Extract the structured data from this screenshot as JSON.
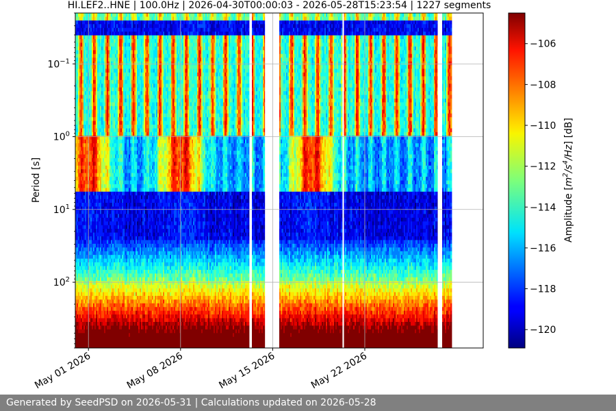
{
  "chart_data": {
    "type": "heatmap",
    "title": "HI.LEF2..HNE | 100.0Hz | 2026-04-30T00:00:03 - 2026-05-28T15:23:54 | 1227 segments",
    "xlabel": "",
    "ylabel": "Period [s]",
    "colorbar_label": "Amplitude [m²/s⁴/Hz] [dB]",
    "colorbar_label_parts": [
      "Amplitude [",
      "m",
      "2",
      "/s",
      "4",
      "/Hz",
      "] [dB]"
    ],
    "colormap": "jet",
    "zlim": [
      -120.9,
      -104.5
    ],
    "colorbar_ticks": [
      -106,
      -108,
      -110,
      -112,
      -114,
      -116,
      -118,
      -120
    ],
    "colorbar_tick_labels": [
      "−106",
      "−108",
      "−110",
      "−112",
      "−114",
      "−116",
      "−118",
      "−120"
    ],
    "x_range": [
      "2026-04-30",
      "2026-05-31"
    ],
    "x_ticks": [
      "2026-05-01",
      "2026-05-08",
      "2026-05-15",
      "2026-05-22"
    ],
    "x_tick_labels": [
      "May 01 2026",
      "May 08 2026",
      "May 15 2026",
      "May 22 2026"
    ],
    "y_scale": "log",
    "y_inverted": true,
    "ylim": [
      0.02,
      800
    ],
    "y_ticks": [
      0.1,
      1,
      10,
      100
    ],
    "y_tick_labels": [
      [
        "10",
        "−1"
      ],
      [
        "10",
        "0"
      ],
      [
        "10",
        "1"
      ],
      [
        "10",
        "2"
      ]
    ],
    "grid": true,
    "data_gaps": [
      [
        "2026-05-13T06:00",
        "2026-05-13T10:00"
      ],
      [
        "2026-05-14T10:00",
        "2026-05-15T12:00"
      ],
      [
        "2026-05-20T08:00",
        "2026-05-20T10:00"
      ],
      [
        "2026-05-27T13:00",
        "2026-05-27T21:00"
      ]
    ],
    "features": {
      "high_frequency_band_period_s": [
        0.05,
        2.0
      ],
      "microseism_peak_period_s": [
        1.5,
        5.0
      ],
      "microseism_peak_dates": [
        "2026-05-01",
        "2026-05-08",
        "2026-05-18"
      ],
      "quiet_band_period_s": [
        5,
        60
      ],
      "long_period_noise_period_s": [
        100,
        800
      ]
    }
  },
  "footer": {
    "text": "Generated by SeedPSD on 2026-05-31 | Calculations updated on 2026-05-28"
  }
}
